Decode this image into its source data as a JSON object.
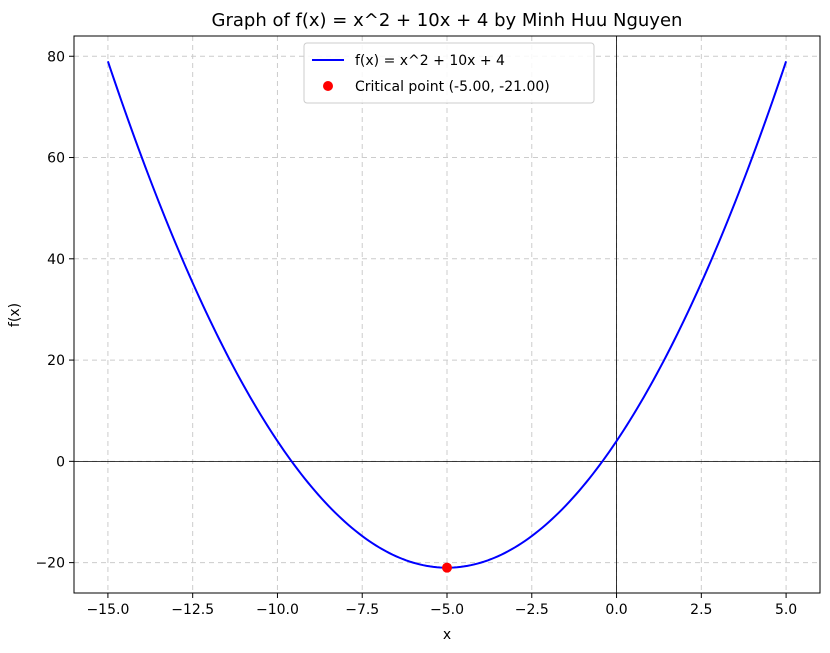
{
  "chart_data": {
    "type": "line",
    "title": "Graph of f(x) = x^2 + 10x + 4 by Minh Huu Nguyen",
    "xlabel": "x",
    "ylabel": "f(x)",
    "xlim": [
      -16.0,
      6.0
    ],
    "ylim": [
      -26.0,
      84.0
    ],
    "x_ticks": [
      -15.0,
      -12.5,
      -10.0,
      -7.5,
      -5.0,
      -2.5,
      0.0,
      2.5,
      5.0
    ],
    "x_tick_labels": [
      "−15.0",
      "−12.5",
      "−10.0",
      "−7.5",
      "−5.0",
      "−2.5",
      "0.0",
      "2.5",
      "5.0"
    ],
    "y_ticks": [
      -20,
      0,
      20,
      40,
      60,
      80
    ],
    "y_tick_labels": [
      "−20",
      "0",
      "20",
      "40",
      "60",
      "80"
    ],
    "grid": true,
    "legend_position": "top-center",
    "reference_lines": {
      "x": 0,
      "y": 0
    },
    "series": [
      {
        "name": "f(x) = x^2 + 10x + 4",
        "kind": "line",
        "color": "#0000ff",
        "x": [
          -15,
          -14,
          -13,
          -12,
          -11,
          -10,
          -9,
          -8,
          -7,
          -6,
          -5,
          -4,
          -3,
          -2,
          -1,
          0,
          1,
          2,
          3,
          4,
          5
        ],
        "y": [
          79,
          60,
          43,
          28,
          15,
          4,
          -5,
          -12,
          -17,
          -20,
          -21,
          -20,
          -17,
          -12,
          -5,
          4,
          15,
          28,
          43,
          60,
          79
        ]
      },
      {
        "name": "Critical point (-5.00, -21.00)",
        "kind": "scatter",
        "color": "#ff0000",
        "x": [
          -5.0
        ],
        "y": [
          -21.0
        ]
      }
    ]
  }
}
